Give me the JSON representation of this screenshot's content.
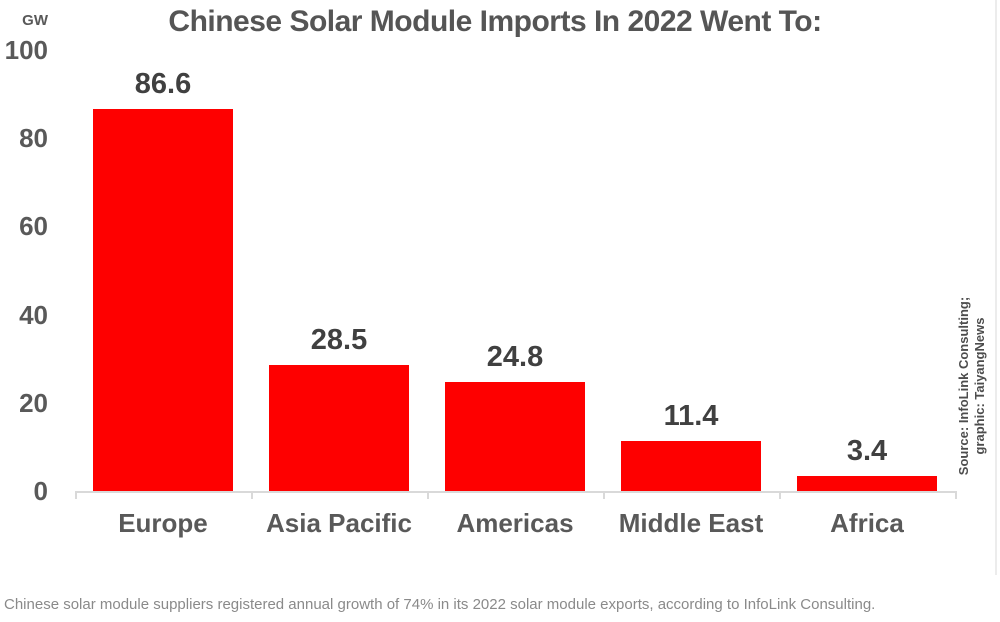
{
  "chart_data": {
    "type": "bar",
    "title": "Chinese Solar Module Imports In 2022 Went To:",
    "ylabel": "GW",
    "xlabel": "",
    "categories": [
      "Europe",
      "Asia Pacific",
      "Americas",
      "Middle East",
      "Africa"
    ],
    "values": [
      86.6,
      28.5,
      24.8,
      11.4,
      3.4
    ],
    "value_labels": [
      "86.6",
      "28.5",
      "24.8",
      "11.4",
      "3.4"
    ],
    "ylim": [
      0,
      100
    ],
    "yticks": [
      0,
      20,
      40,
      60,
      80,
      100
    ],
    "grid": false,
    "legend": "none",
    "bar_color": "#fe0000",
    "value_label_color": "#404040",
    "axis_text_color": "#595959",
    "axis_line_color": "#d9d9d9",
    "title_color": "#555555"
  },
  "source_note": {
    "line1": "Source: InfoLink Consulting;",
    "line2": "graphic: TaiyangNews"
  },
  "caption": {
    "text": "Chinese solar module suppliers registered annual growth of 74% in its 2022 solar module exports, according to InfoLink Consulting."
  }
}
